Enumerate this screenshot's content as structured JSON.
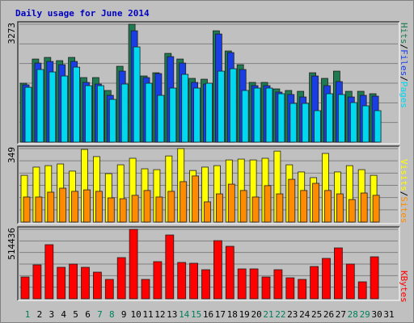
{
  "chart_data": {
    "type": "bar",
    "title": "Daily usage for June 2014",
    "categories": [
      "1",
      "2",
      "3",
      "4",
      "5",
      "6",
      "7",
      "8",
      "9",
      "10",
      "11",
      "12",
      "13",
      "14",
      "15",
      "16",
      "17",
      "18",
      "19",
      "20",
      "21",
      "22",
      "23",
      "24",
      "25",
      "26",
      "27",
      "28",
      "29",
      "30",
      "31"
    ],
    "category_colors": [
      "#00805c",
      "#000000",
      "#000000",
      "#000000",
      "#000000",
      "#000000",
      "#00805c",
      "#00805c",
      "#000000",
      "#000000",
      "#000000",
      "#000000",
      "#000000",
      "#00805c",
      "#00805c",
      "#000000",
      "#000000",
      "#000000",
      "#000000",
      "#000000",
      "#00805c",
      "#00805c",
      "#000000",
      "#000000",
      "#000000",
      "#000000",
      "#000000",
      "#00805c",
      "#00805c",
      "#000000",
      "#000000"
    ],
    "legend_separator": "/",
    "panels": [
      {
        "ylim": [
          0,
          3273
        ],
        "yticks": [
          3273
        ],
        "series": [
          {
            "name": "Hits",
            "color": "#1e7a50",
            "values": [
              1635,
              2307,
              2352,
              2262,
              2352,
              1792,
              1792,
              1434,
              2106,
              3273,
              1837,
              1926,
              2464,
              2307,
              1770,
              1747,
              3091,
              2531,
              2150,
              1658,
              1658,
              1478,
              1434,
              1411,
              1926,
              1770,
              1971,
              1411,
              1411,
              1344,
              null
            ]
          },
          {
            "name": "Files",
            "color": "#1a3ee6",
            "values": [
              1590,
              2195,
              2240,
              2150,
              2240,
              1658,
              1613,
              1299,
              1971,
              3091,
              1792,
              1904,
              2374,
              2195,
              1658,
              1613,
              3002,
              2486,
              2016,
              1568,
              1568,
              1389,
              1322,
              1254,
              1837,
              1568,
              1680,
              1254,
              1299,
              1277,
              null
            ]
          },
          {
            "name": "Pages",
            "color": "#00d8f0",
            "values": [
              1523,
              2016,
              1949,
              1837,
              2083,
              1568,
              1568,
              1187,
              1613,
              2643,
              1635,
              1299,
              1501,
              1882,
              1501,
              1635,
              1971,
              2038,
              1434,
              1501,
              1501,
              1344,
              1075,
              1075,
              874,
              1344,
              1322,
              1098,
              1008,
              874,
              null
            ]
          }
        ]
      },
      {
        "ylim": [
          0,
          349
        ],
        "yticks": [
          349
        ],
        "series": [
          {
            "name": "Visits",
            "color": "#ffff00",
            "values": [
              222,
              261,
              268,
              276,
              242,
              345,
              311,
              230,
              272,
              303,
              253,
              249,
              314,
              349,
              245,
              261,
              268,
              295,
              299,
              295,
              303,
              337,
              272,
              238,
              211,
              326,
              238,
              268,
              249,
              222,
              null
            ]
          },
          {
            "name": "Sites",
            "color": "#ff8c00",
            "values": [
              119,
              119,
              142,
              161,
              146,
              153,
              146,
              115,
              111,
              127,
              150,
              119,
              146,
              192,
              219,
              96,
              134,
              180,
              150,
              119,
              173,
              134,
              203,
              150,
              184,
              150,
              134,
              107,
              138,
              127,
              null
            ]
          }
        ]
      },
      {
        "ylim": [
          0,
          514436
        ],
        "yticks": [
          514436
        ],
        "series": [
          {
            "name": "KBytes",
            "color": "#ff0000",
            "values": [
              161514,
              251244,
              400794,
              233298,
              257226,
              233298,
              197406,
              143568,
              305082,
              514436,
              143568,
              275172,
              472578,
              269190,
              263208,
              215352,
              430704,
              388830,
              221334,
              221334,
              161514,
              215352,
              155532,
              143568,
              239280,
              299100,
              376866,
              257226,
              125622,
              311064,
              null
            ]
          }
        ]
      }
    ]
  }
}
